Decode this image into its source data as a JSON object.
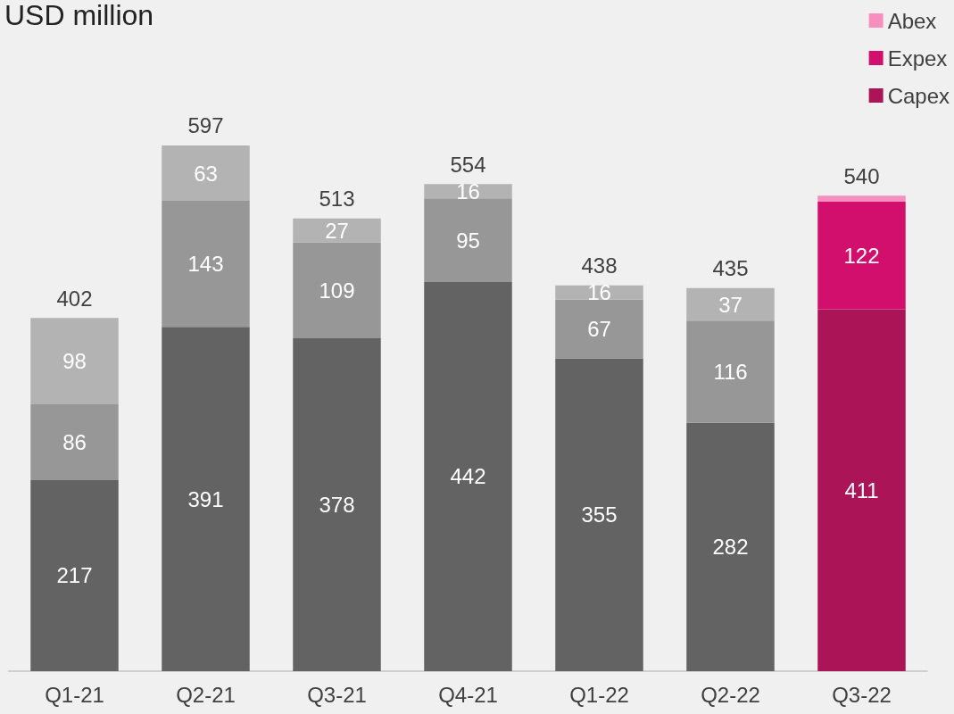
{
  "chart_data": {
    "type": "bar",
    "title": "USD million",
    "stacked": true,
    "legend": "top right",
    "categories": [
      "Q1-21",
      "Q2-21",
      "Q3-21",
      "Q4-21",
      "Q1-22",
      "Q2-22",
      "Q3-22"
    ],
    "series": [
      {
        "name": "Capex",
        "color": "#ab1457",
        "colors": [
          "#636363",
          "#636363",
          "#636363",
          "#636363",
          "#636363",
          "#636363",
          "#ab1457"
        ],
        "values": [
          217,
          391,
          378,
          442,
          355,
          282,
          411
        ],
        "value_labels": [
          "217",
          "391",
          "378",
          "442",
          "355",
          "282",
          "411"
        ]
      },
      {
        "name": "Expex",
        "color": "#d20f6d",
        "colors": [
          "#979797",
          "#979797",
          "#979797",
          "#979797",
          "#979797",
          "#979797",
          "#d20f6d"
        ],
        "values": [
          86,
          143,
          109,
          95,
          67,
          116,
          122
        ],
        "value_labels": [
          "86",
          "143",
          "109",
          "95",
          "67",
          "116",
          "122"
        ]
      },
      {
        "name": "Abex",
        "color": "#f78fbe",
        "colors": [
          "#b3b3b3",
          "#b3b3b3",
          "#b3b3b3",
          "#b3b3b3",
          "#b3b3b3",
          "#b3b3b3",
          "#f78fbe"
        ],
        "values": [
          98,
          63,
          27,
          16,
          16,
          37,
          7
        ],
        "value_labels": [
          "98",
          "63",
          "27",
          "16",
          "16",
          "37",
          null
        ]
      }
    ],
    "totals": [
      "402",
      "597",
      "513",
      "554",
      "438",
      "435",
      "540"
    ]
  }
}
